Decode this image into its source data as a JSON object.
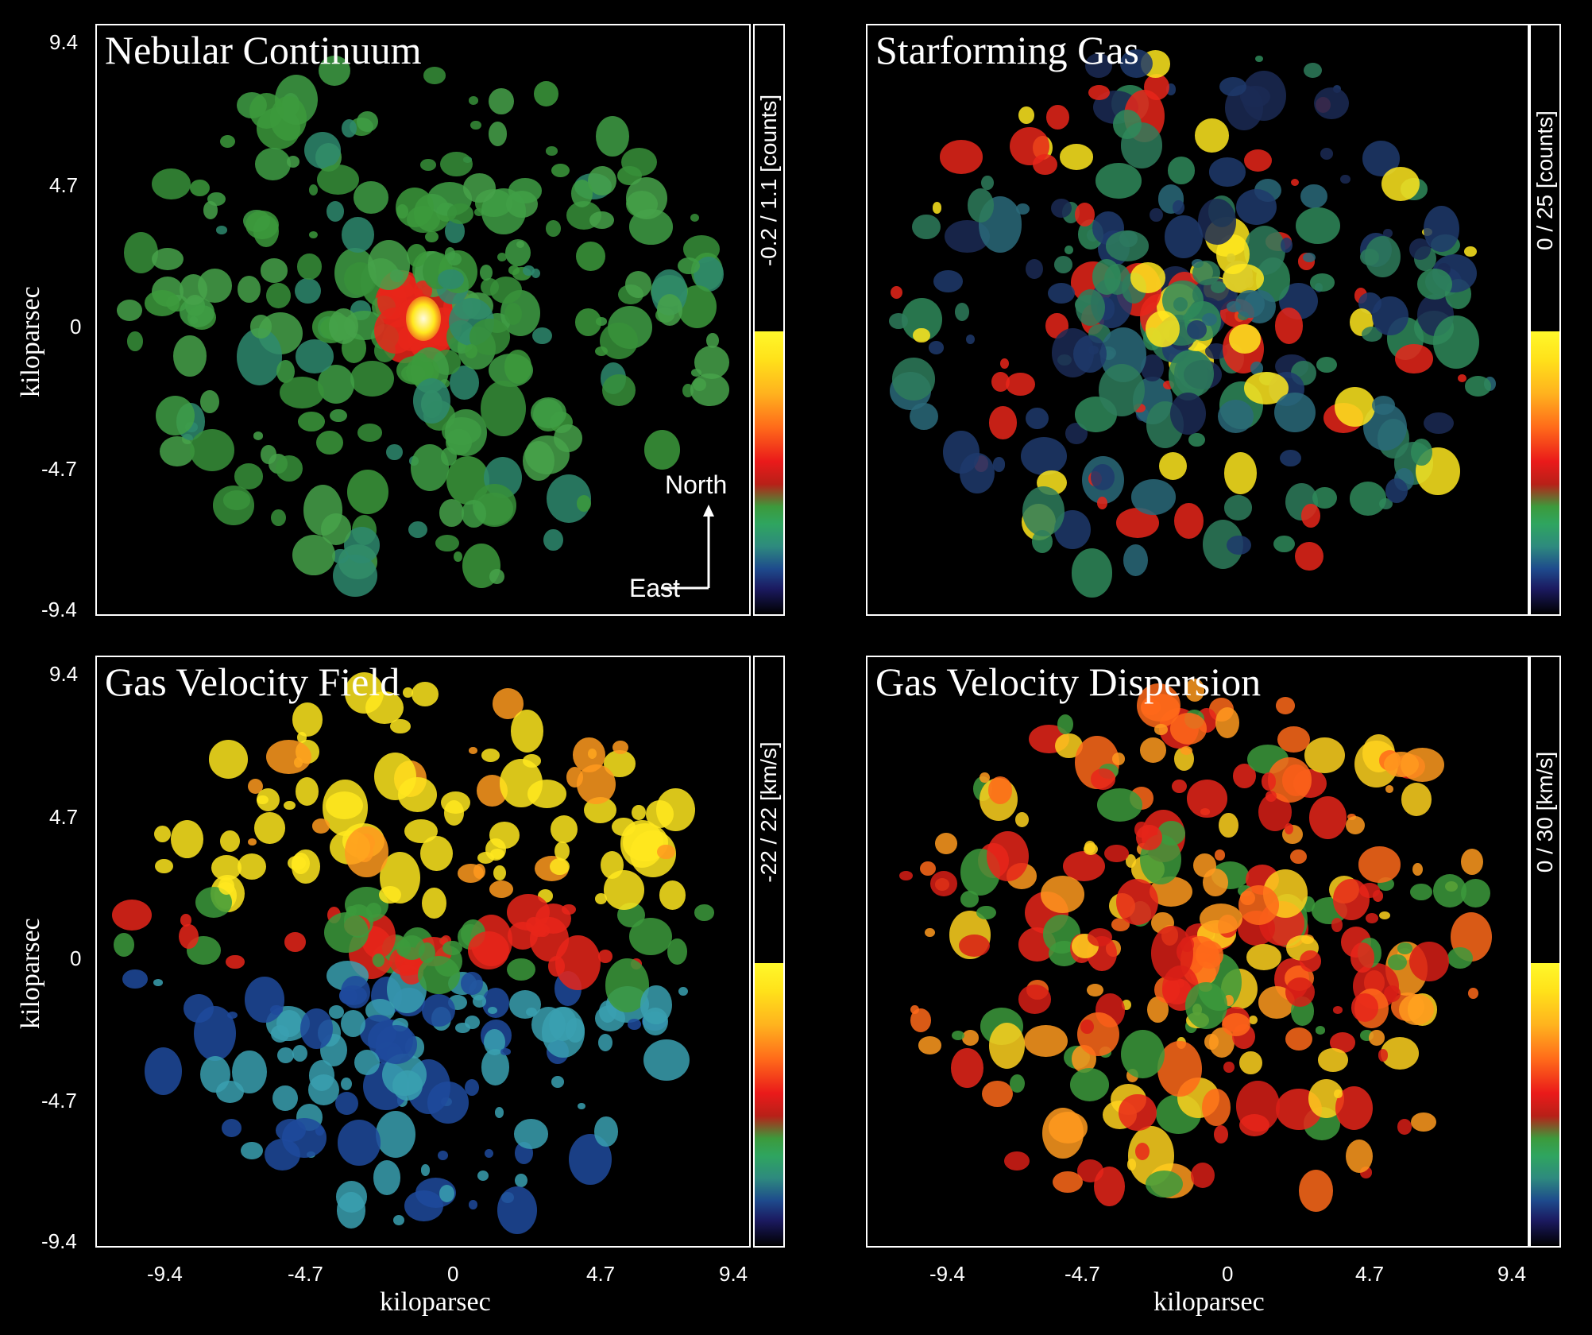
{
  "panels": [
    {
      "title": "Nebular Continuum",
      "colorbar_label": "-0.2  /  1.1  [counts]",
      "palette": "continuum"
    },
    {
      "title": "Starforming Gas",
      "colorbar_label": "0  /  25  [counts]",
      "palette": "gas"
    },
    {
      "title": "Gas Velocity Field",
      "colorbar_label": "-22  /  22  [km/s]",
      "palette": "velocity"
    },
    {
      "title": "Gas Velocity Dispersion",
      "colorbar_label": "0  /  30  [km/s]",
      "palette": "dispersion"
    }
  ],
  "axes": {
    "y_label": "kiloparsec",
    "x_label": "kiloparsec",
    "y_ticks": [
      "9.4",
      "4.7",
      "0",
      "-4.7",
      "-9.4"
    ],
    "x_ticks": [
      "-9.4",
      "-4.7",
      "0",
      "4.7",
      "9.4"
    ]
  },
  "compass": {
    "north": "North",
    "east": "East"
  },
  "colors": {
    "background": "#000000",
    "green": "#3c9a3c",
    "red": "#e8261a",
    "yellow": "#ffe81e",
    "blue": "#1e4a9c",
    "cyan": "#3aa0b0"
  }
}
